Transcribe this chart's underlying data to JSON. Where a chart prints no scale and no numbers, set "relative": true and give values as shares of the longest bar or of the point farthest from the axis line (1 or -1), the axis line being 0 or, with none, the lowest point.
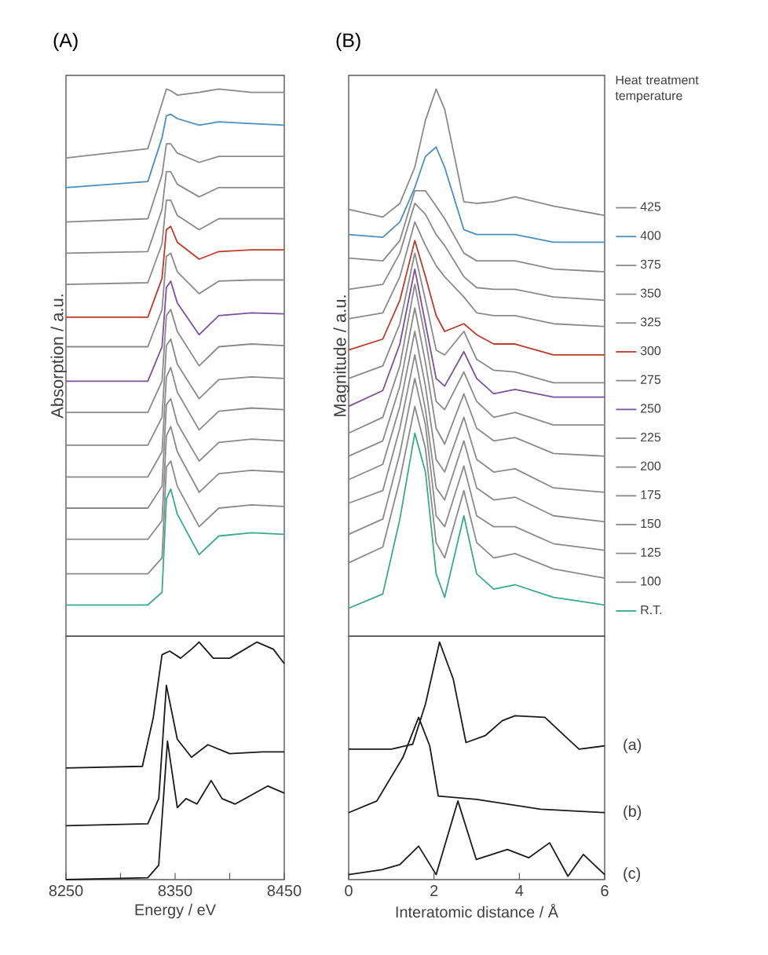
{
  "chart_data": [
    {
      "type": "line",
      "title": "(A)",
      "ylabel": "Absorption / a.u.",
      "relative": true,
      "xlim": [
        8250,
        8450
      ],
      "x": [
        8250,
        8325,
        8338,
        8342,
        8346,
        8352,
        8372,
        8390,
        8420,
        8450
      ],
      "series": [
        {
          "color": "#8a8a8a",
          "values": [
            0.874,
            0.891,
            0.974,
            1.0,
            0.997,
            0.989,
            0.994,
            1.0,
            0.994,
            0.994
          ]
        },
        {
          "color": "#4a8ec2",
          "values": [
            0.82,
            0.831,
            0.911,
            0.951,
            0.954,
            0.946,
            0.934,
            0.94,
            0.937,
            0.934
          ]
        },
        {
          "color": "#8a8a8a",
          "values": [
            0.757,
            0.763,
            0.843,
            0.9,
            0.9,
            0.883,
            0.866,
            0.877,
            0.877,
            0.877
          ]
        },
        {
          "color": "#8a8a8a",
          "values": [
            0.7,
            0.703,
            0.78,
            0.849,
            0.849,
            0.826,
            0.803,
            0.82,
            0.82,
            0.82
          ]
        },
        {
          "color": "#8a8a8a",
          "values": [
            0.643,
            0.646,
            0.717,
            0.797,
            0.797,
            0.769,
            0.743,
            0.763,
            0.763,
            0.763
          ]
        },
        {
          "color": "#c0392b",
          "values": [
            0.583,
            0.583,
            0.654,
            0.743,
            0.749,
            0.72,
            0.689,
            0.703,
            0.706,
            0.706
          ]
        },
        {
          "color": "#8a8a8a",
          "values": [
            0.529,
            0.529,
            0.597,
            0.694,
            0.7,
            0.666,
            0.626,
            0.649,
            0.651,
            0.651
          ]
        },
        {
          "color": "#7d4f9e",
          "values": [
            0.466,
            0.466,
            0.529,
            0.637,
            0.649,
            0.609,
            0.551,
            0.586,
            0.591,
            0.589
          ]
        },
        {
          "color": "#8a8a8a",
          "values": [
            0.409,
            0.409,
            0.466,
            0.586,
            0.597,
            0.557,
            0.494,
            0.529,
            0.534,
            0.531
          ]
        },
        {
          "color": "#8a8a8a",
          "values": [
            0.349,
            0.349,
            0.4,
            0.531,
            0.543,
            0.497,
            0.434,
            0.469,
            0.474,
            0.471
          ]
        },
        {
          "color": "#8a8a8a",
          "values": [
            0.291,
            0.291,
            0.337,
            0.474,
            0.491,
            0.446,
            0.377,
            0.411,
            0.417,
            0.414
          ]
        },
        {
          "color": "#8a8a8a",
          "values": [
            0.234,
            0.234,
            0.274,
            0.423,
            0.434,
            0.389,
            0.32,
            0.354,
            0.36,
            0.357
          ]
        },
        {
          "color": "#8a8a8a",
          "values": [
            0.177,
            0.177,
            0.211,
            0.366,
            0.383,
            0.337,
            0.263,
            0.297,
            0.303,
            0.3
          ]
        },
        {
          "color": "#8a8a8a",
          "values": [
            0.114,
            0.114,
            0.143,
            0.309,
            0.32,
            0.274,
            0.2,
            0.234,
            0.24,
            0.237
          ]
        },
        {
          "color": "#3aaa8c",
          "values": [
            0.057,
            0.057,
            0.08,
            0.251,
            0.269,
            0.223,
            0.149,
            0.183,
            0.189,
            0.186
          ]
        }
      ]
    },
    {
      "type": "line",
      "xlabel": "Energy / eV",
      "relative": true,
      "xlim": [
        8250,
        8450
      ],
      "xticks": [
        8250,
        {
          "value": 8300,
          "label": null
        },
        8350,
        {
          "value": 8400,
          "label": null
        },
        8450
      ],
      "series": [
        {
          "color": "#1a1a1a",
          "x": [
            8250,
            8320,
            8330,
            8338,
            8345,
            8355,
            8365,
            8372,
            8385,
            8400,
            8425,
            8440,
            8450
          ],
          "values": [
            0.47,
            0.477,
            0.682,
            0.947,
            0.962,
            0.932,
            0.97,
            1.0,
            0.932,
            0.932,
            1.0,
            0.97,
            0.909
          ]
        },
        {
          "color": "#1a1a1a",
          "x": [
            8250,
            8325,
            8335,
            8342,
            8352,
            8365,
            8380,
            8400,
            8430,
            8450
          ],
          "values": [
            0.227,
            0.235,
            0.341,
            0.818,
            0.591,
            0.515,
            0.568,
            0.53,
            0.538,
            0.538
          ]
        },
        {
          "color": "#1a1a1a",
          "x": [
            8250,
            8325,
            8335,
            8343,
            8352,
            8360,
            8370,
            8383,
            8393,
            8405,
            8420,
            8435,
            8450
          ],
          "values": [
            0.0,
            0.008,
            0.061,
            0.583,
            0.303,
            0.341,
            0.318,
            0.417,
            0.341,
            0.318,
            0.356,
            0.394,
            0.364
          ]
        }
      ]
    },
    {
      "type": "line",
      "title": "(B)",
      "ylabel": "Magnitude / a.u.",
      "relative": true,
      "xlim": [
        0,
        6
      ],
      "legend": "right",
      "legend_title": "Heat treatment temperature",
      "x": [
        0,
        0.8,
        1.2,
        1.55,
        1.8,
        2.05,
        2.25,
        2.7,
        3.0,
        3.4,
        3.9,
        4.8,
        6.0
      ],
      "series": [
        {
          "name": "425",
          "color": "#8a8a8a",
          "values": [
            0.78,
            0.766,
            0.791,
            0.857,
            0.943,
            1.0,
            0.963,
            0.794,
            0.791,
            0.794,
            0.803,
            0.786,
            0.769
          ]
        },
        {
          "name": "400",
          "color": "#4a8ec2",
          "values": [
            0.734,
            0.729,
            0.757,
            0.82,
            0.877,
            0.894,
            0.857,
            0.743,
            0.734,
            0.734,
            0.734,
            0.72,
            0.72
          ]
        },
        {
          "name": "375",
          "color": "#8a8a8a",
          "values": [
            0.691,
            0.686,
            0.723,
            0.814,
            0.814,
            0.786,
            0.763,
            0.7,
            0.686,
            0.686,
            0.686,
            0.671,
            0.666
          ]
        },
        {
          "name": "350",
          "color": "#8a8a8a",
          "values": [
            0.634,
            0.643,
            0.7,
            0.791,
            0.771,
            0.734,
            0.714,
            0.657,
            0.637,
            0.634,
            0.634,
            0.62,
            0.614
          ]
        },
        {
          "name": "325",
          "color": "#8a8a8a",
          "values": [
            0.58,
            0.591,
            0.657,
            0.757,
            0.714,
            0.677,
            0.657,
            0.62,
            0.591,
            0.586,
            0.586,
            0.571,
            0.566
          ]
        },
        {
          "name": "300",
          "color": "#c0392b",
          "values": [
            0.523,
            0.543,
            0.614,
            0.723,
            0.657,
            0.586,
            0.557,
            0.571,
            0.551,
            0.534,
            0.534,
            0.514,
            0.514
          ]
        },
        {
          "name": "275",
          "color": "#8a8a8a",
          "values": [
            0.471,
            0.494,
            0.571,
            0.7,
            0.614,
            0.523,
            0.514,
            0.557,
            0.506,
            0.486,
            0.483,
            0.463,
            0.463
          ]
        },
        {
          "name": "250",
          "color": "#7d4f9e",
          "values": [
            0.42,
            0.449,
            0.534,
            0.671,
            0.571,
            0.471,
            0.457,
            0.52,
            0.471,
            0.443,
            0.451,
            0.437,
            0.437
          ]
        },
        {
          "name": "225",
          "color": "#8a8a8a",
          "values": [
            0.371,
            0.4,
            0.494,
            0.643,
            0.543,
            0.429,
            0.414,
            0.483,
            0.429,
            0.4,
            0.409,
            0.386,
            0.386
          ]
        },
        {
          "name": "200",
          "color": "#8a8a8a",
          "values": [
            0.329,
            0.357,
            0.457,
            0.6,
            0.5,
            0.38,
            0.351,
            0.443,
            0.38,
            0.357,
            0.363,
            0.334,
            0.329
          ]
        },
        {
          "name": "175",
          "color": "#8a8a8a",
          "values": [
            0.286,
            0.314,
            0.42,
            0.557,
            0.457,
            0.323,
            0.3,
            0.4,
            0.323,
            0.3,
            0.306,
            0.271,
            0.263
          ]
        },
        {
          "name": "150",
          "color": "#8a8a8a",
          "values": [
            0.243,
            0.266,
            0.38,
            0.514,
            0.414,
            0.271,
            0.249,
            0.357,
            0.271,
            0.249,
            0.254,
            0.22,
            0.209
          ]
        },
        {
          "name": "125",
          "color": "#8a8a8a",
          "values": [
            0.186,
            0.214,
            0.334,
            0.471,
            0.386,
            0.22,
            0.2,
            0.311,
            0.22,
            0.2,
            0.2,
            0.169,
            0.157
          ]
        },
        {
          "name": "100",
          "color": "#8a8a8a",
          "values": [
            0.134,
            0.163,
            0.286,
            0.42,
            0.343,
            0.171,
            0.143,
            0.266,
            0.171,
            0.143,
            0.151,
            0.123,
            0.106
          ]
        },
        {
          "name": "R.T.",
          "color": "#3aaa8c",
          "values": [
            0.051,
            0.077,
            0.214,
            0.371,
            0.3,
            0.114,
            0.071,
            0.22,
            0.114,
            0.086,
            0.094,
            0.071,
            0.057
          ]
        }
      ]
    },
    {
      "type": "line",
      "xlabel": "Interatomic distance / Å",
      "relative": true,
      "xlim": [
        0,
        6
      ],
      "xticks": [
        0,
        2,
        4,
        6
      ],
      "series": [
        {
          "name": "(a)",
          "color": "#1a1a1a",
          "x": [
            0,
            1.0,
            1.5,
            1.8,
            2.13,
            2.45,
            2.75,
            3.2,
            3.6,
            3.9,
            4.6,
            5.1,
            5.4,
            6.0
          ],
          "values": [
            0.549,
            0.549,
            0.57,
            0.739,
            1.0,
            0.845,
            0.577,
            0.606,
            0.669,
            0.69,
            0.683,
            0.599,
            0.549,
            0.563
          ]
        },
        {
          "name": "(b)",
          "color": "#1a1a1a",
          "x": [
            0,
            0.66,
            1.27,
            1.64,
            1.9,
            2.1,
            3.0,
            4.5,
            6.0
          ],
          "values": [
            0.282,
            0.331,
            0.514,
            0.683,
            0.563,
            0.352,
            0.338,
            0.296,
            0.282
          ]
        },
        {
          "name": "(c)",
          "color": "#1a1a1a",
          "x": [
            0,
            0.78,
            1.2,
            1.64,
            2.05,
            2.56,
            2.99,
            3.72,
            4.22,
            4.71,
            5.14,
            5.5,
            6.0
          ],
          "values": [
            0.021,
            0.042,
            0.063,
            0.141,
            0.021,
            0.331,
            0.085,
            0.127,
            0.092,
            0.155,
            0.014,
            0.106,
            0.021
          ]
        }
      ]
    }
  ]
}
